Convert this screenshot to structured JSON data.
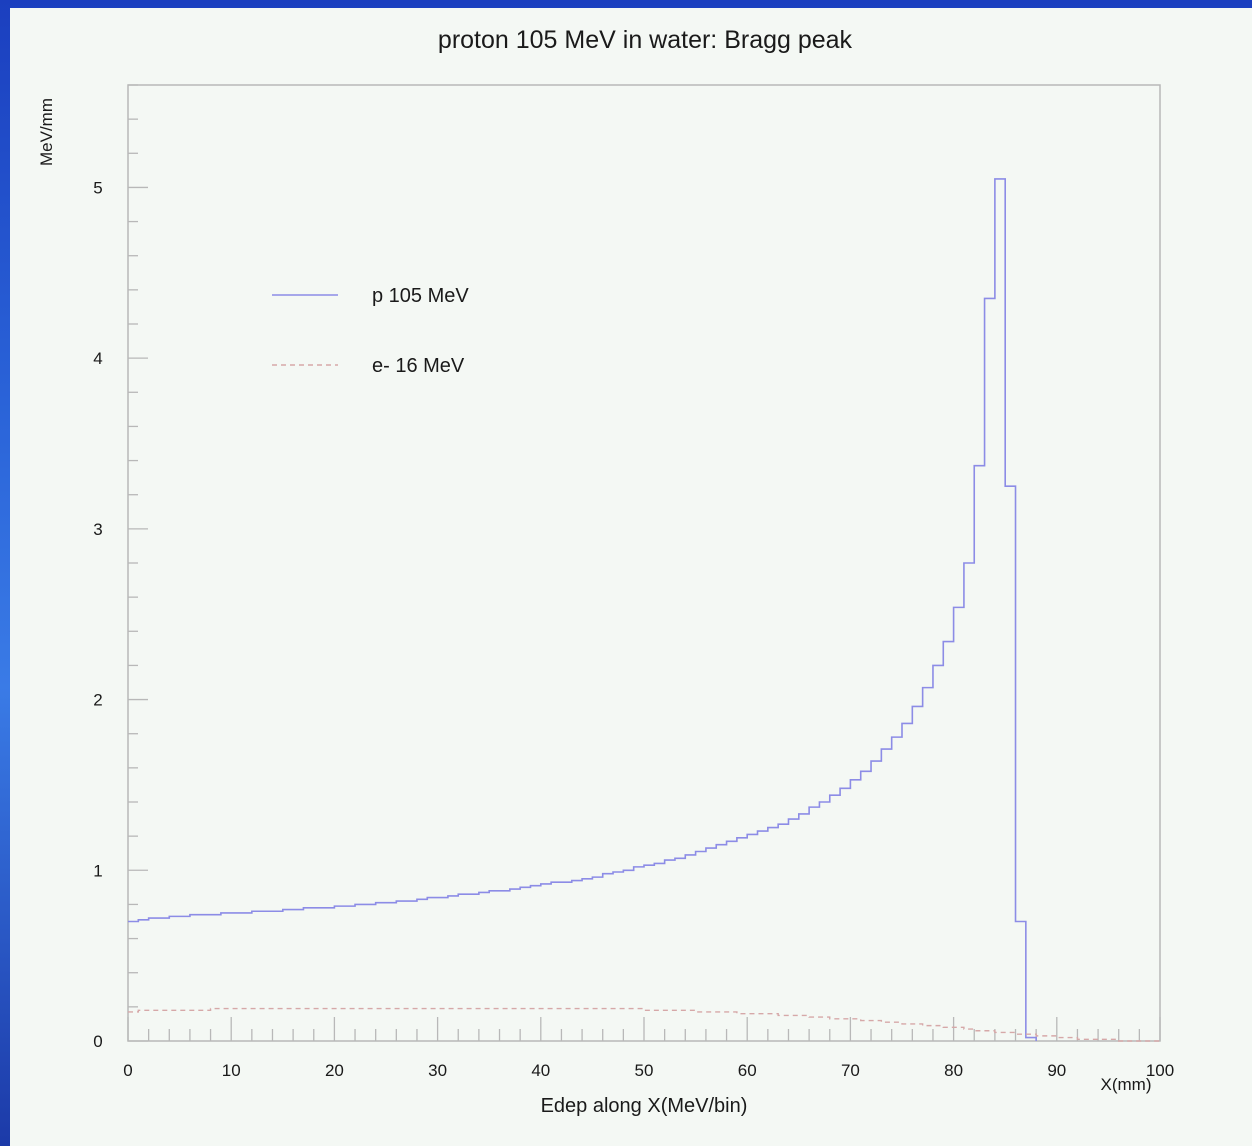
{
  "colors": {
    "proton_line": "#8c8ce6",
    "electron_line": "#d6a8a8",
    "axis": "#b8b8b8",
    "text": "#1a1a1a"
  },
  "chart_data": {
    "type": "histogram",
    "title": "proton 105 MeV in water: Bragg peak",
    "xlabel": "Edep along X(MeV/bin)",
    "xunit_label": "X(mm)",
    "ylabel": "MeV/mm",
    "xlim": [
      0,
      100
    ],
    "ylim": [
      0,
      5.6
    ],
    "xticks": [
      0,
      10,
      20,
      30,
      40,
      50,
      60,
      70,
      80,
      90,
      100
    ],
    "yticks": [
      0,
      1,
      2,
      3,
      4,
      5
    ],
    "bin_width": 1,
    "grid": false,
    "legend_position": "upper-left",
    "series": [
      {
        "name": "p 105 MeV",
        "style": "solid",
        "values": [
          0.7,
          0.71,
          0.72,
          0.72,
          0.73,
          0.73,
          0.74,
          0.74,
          0.74,
          0.75,
          0.75,
          0.75,
          0.76,
          0.76,
          0.76,
          0.77,
          0.77,
          0.78,
          0.78,
          0.78,
          0.79,
          0.79,
          0.8,
          0.8,
          0.81,
          0.81,
          0.82,
          0.82,
          0.83,
          0.84,
          0.84,
          0.85,
          0.86,
          0.86,
          0.87,
          0.88,
          0.88,
          0.89,
          0.9,
          0.91,
          0.92,
          0.93,
          0.93,
          0.94,
          0.95,
          0.96,
          0.98,
          0.99,
          1.0,
          1.02,
          1.03,
          1.04,
          1.06,
          1.07,
          1.09,
          1.11,
          1.13,
          1.15,
          1.17,
          1.19,
          1.21,
          1.23,
          1.25,
          1.27,
          1.3,
          1.33,
          1.37,
          1.4,
          1.44,
          1.48,
          1.53,
          1.58,
          1.64,
          1.71,
          1.78,
          1.86,
          1.96,
          2.07,
          2.2,
          2.34,
          2.54,
          2.8,
          3.37,
          4.35,
          5.05,
          3.25,
          0.7,
          0.02
        ]
      },
      {
        "name": "e- 16 MeV",
        "style": "dashed",
        "values": [
          0.17,
          0.18,
          0.18,
          0.18,
          0.18,
          0.18,
          0.18,
          0.18,
          0.19,
          0.19,
          0.19,
          0.19,
          0.19,
          0.19,
          0.19,
          0.19,
          0.19,
          0.19,
          0.19,
          0.19,
          0.19,
          0.19,
          0.19,
          0.19,
          0.19,
          0.19,
          0.19,
          0.19,
          0.19,
          0.19,
          0.19,
          0.19,
          0.19,
          0.19,
          0.19,
          0.19,
          0.19,
          0.19,
          0.19,
          0.19,
          0.19,
          0.19,
          0.19,
          0.19,
          0.19,
          0.19,
          0.19,
          0.19,
          0.19,
          0.19,
          0.18,
          0.18,
          0.18,
          0.18,
          0.18,
          0.17,
          0.17,
          0.17,
          0.17,
          0.16,
          0.16,
          0.16,
          0.16,
          0.15,
          0.15,
          0.15,
          0.14,
          0.14,
          0.13,
          0.13,
          0.13,
          0.12,
          0.12,
          0.11,
          0.11,
          0.1,
          0.1,
          0.09,
          0.09,
          0.08,
          0.08,
          0.07,
          0.06,
          0.06,
          0.05,
          0.05,
          0.04,
          0.04,
          0.03,
          0.03,
          0.02,
          0.02,
          0.01,
          0.01,
          0.01,
          0.01,
          0.0,
          0.0,
          0.0,
          0.0
        ]
      }
    ]
  }
}
